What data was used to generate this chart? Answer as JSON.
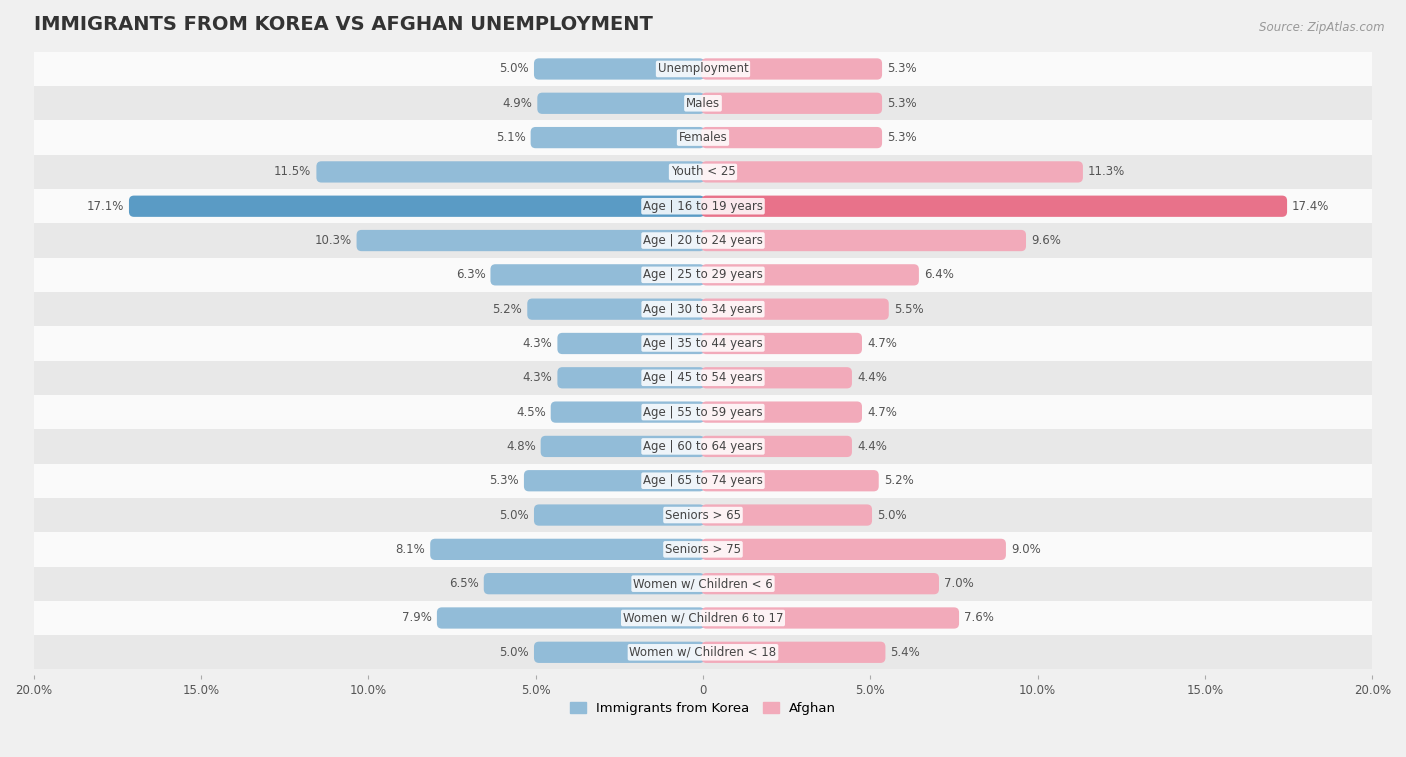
{
  "title": "IMMIGRANTS FROM KOREA VS AFGHAN UNEMPLOYMENT",
  "source": "Source: ZipAtlas.com",
  "categories": [
    "Unemployment",
    "Males",
    "Females",
    "Youth < 25",
    "Age | 16 to 19 years",
    "Age | 20 to 24 years",
    "Age | 25 to 29 years",
    "Age | 30 to 34 years",
    "Age | 35 to 44 years",
    "Age | 45 to 54 years",
    "Age | 55 to 59 years",
    "Age | 60 to 64 years",
    "Age | 65 to 74 years",
    "Seniors > 65",
    "Seniors > 75",
    "Women w/ Children < 6",
    "Women w/ Children 6 to 17",
    "Women w/ Children < 18"
  ],
  "korea_values": [
    5.0,
    4.9,
    5.1,
    11.5,
    17.1,
    10.3,
    6.3,
    5.2,
    4.3,
    4.3,
    4.5,
    4.8,
    5.3,
    5.0,
    8.1,
    6.5,
    7.9,
    5.0
  ],
  "afghan_values": [
    5.3,
    5.3,
    5.3,
    11.3,
    17.4,
    9.6,
    6.4,
    5.5,
    4.7,
    4.4,
    4.7,
    4.4,
    5.2,
    5.0,
    9.0,
    7.0,
    7.6,
    5.4
  ],
  "korea_color": "#92bcd8",
  "afghan_color": "#f2aaba",
  "korea_highlight_color": "#5a9bc5",
  "afghan_highlight_color": "#e8728a",
  "max_value": 20.0,
  "background_color": "#f0f0f0",
  "row_color_light": "#fafafa",
  "row_color_dark": "#e8e8e8",
  "title_fontsize": 14,
  "label_fontsize": 8.5,
  "value_fontsize": 8.5,
  "legend_fontsize": 9.5
}
